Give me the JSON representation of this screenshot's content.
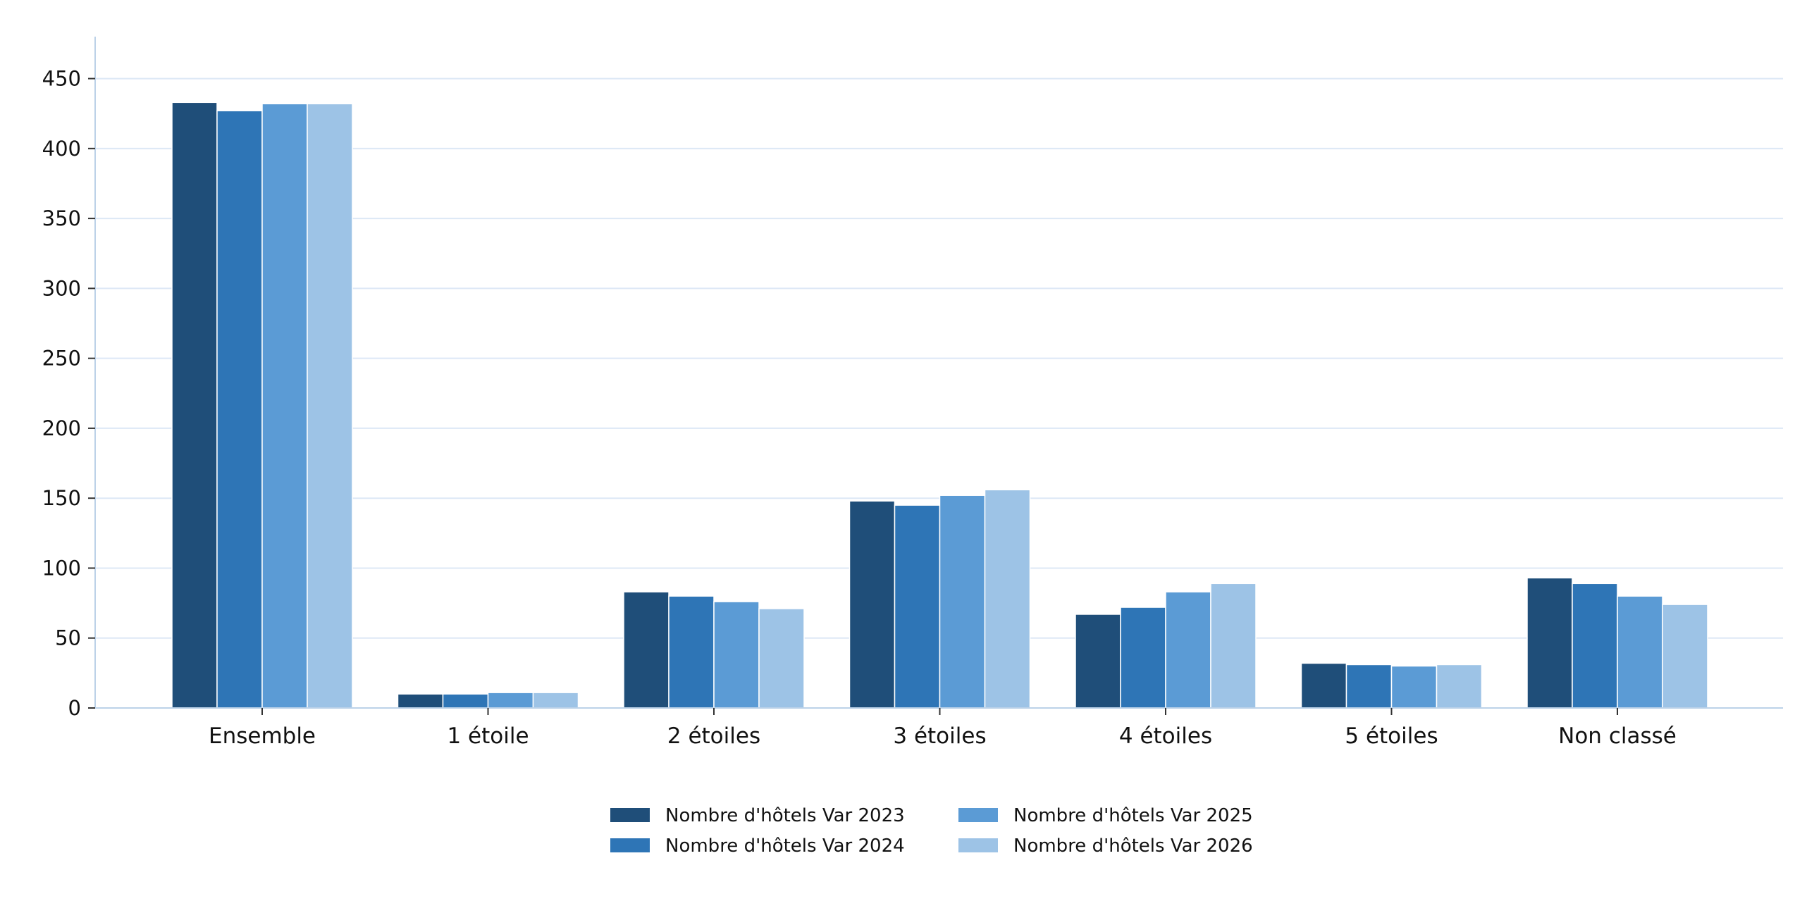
{
  "chart_data": {
    "type": "bar",
    "title": "",
    "xlabel": "",
    "ylabel": "",
    "categories": [
      "Ensemble",
      "1 étoile",
      "2 étoiles",
      "3 étoiles",
      "4 étoiles",
      "5 étoiles",
      "Non classé"
    ],
    "series": [
      {
        "name": "Nombre d'hôtels Var 2023",
        "color": "#1f4e79",
        "values": [
          433,
          10,
          83,
          148,
          67,
          32,
          93
        ]
      },
      {
        "name": "Nombre d'hôtels Var 2024",
        "color": "#2e75b6",
        "values": [
          427,
          10,
          80,
          145,
          72,
          31,
          89
        ]
      },
      {
        "name": "Nombre d'hôtels Var 2025",
        "color": "#5b9bd5",
        "values": [
          432,
          11,
          76,
          152,
          83,
          30,
          80
        ]
      },
      {
        "name": "Nombre d'hôtels Var 2026",
        "color": "#9dc3e6",
        "values": [
          432,
          11,
          71,
          156,
          89,
          31,
          74
        ]
      }
    ],
    "yticks": [
      "0",
      "50",
      "100",
      "150",
      "200",
      "250",
      "300",
      "350",
      "400",
      "450"
    ],
    "ylim": [
      0,
      480
    ],
    "grid": "horizontal",
    "legend_position": "bottom-center"
  }
}
